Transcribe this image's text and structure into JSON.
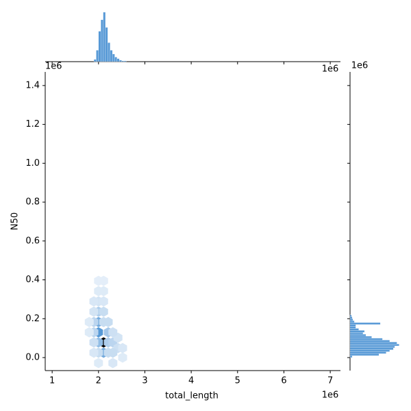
{
  "chart_data": {
    "type": "hexbin",
    "x_label": "total_length",
    "y_label": "N50",
    "x_offset_label": "1e6",
    "y_offset_label": "1e6",
    "xlim": [
      0.85,
      7.22
    ],
    "xticks": [
      1,
      2,
      3,
      4,
      5,
      6,
      7
    ],
    "ylim": [
      -0.067,
      1.47
    ],
    "yticks": [
      {
        "value": 0,
        "label": "0.0"
      },
      0.2,
      0.4,
      0.6,
      0.8,
      {
        "value": 1,
        "label": "1.0"
      },
      1.2,
      1.4
    ],
    "color": "#3a87cf",
    "hexbins": {
      "x": [
        2.11,
        2.0,
        2.11,
        2.0,
        2.0,
        2.21,
        1.9,
        2.0,
        1.9,
        2.21,
        2.31,
        2.42,
        2.31,
        2.0,
        2.21,
        2.42,
        2.52,
        2.11,
        1.9,
        2.11,
        1.9,
        2.0,
        1.9,
        2.11,
        2.0,
        2.11,
        2.0,
        2.11,
        2.0,
        2.31,
        2.52,
        1.8,
        1.8,
        2.21,
        2.31,
        1.9
      ],
      "y": [
        0.078,
        0.13,
        0.025,
        0.183,
        0.078,
        0.13,
        0.183,
        0.236,
        0.13,
        0.078,
        0.078,
        0.049,
        0.025,
        0.025,
        0.025,
        0.102,
        0.049,
        0.183,
        0.078,
        0.236,
        0.236,
        0.289,
        0.289,
        0.289,
        0.342,
        0.342,
        0.395,
        0.395,
        -0.028,
        -0.028,
        0.0,
        0.183,
        0.13,
        0.183,
        0.13,
        0.025
      ],
      "counts": [
        60,
        25,
        20,
        20,
        15,
        12,
        8,
        10,
        8,
        10,
        8,
        5,
        6,
        6,
        6,
        4,
        3,
        6,
        5,
        6,
        4,
        4,
        3,
        3,
        2,
        2,
        1,
        1,
        2,
        3,
        2,
        2,
        2,
        6,
        5,
        3
      ]
    },
    "x_histogram": {
      "bins": [
        1.9,
        1.95,
        2.0,
        2.05,
        2.1,
        2.15,
        2.2,
        2.25,
        2.3,
        2.35,
        2.4,
        2.45,
        2.5,
        2.55,
        2.6
      ],
      "counts": [
        3,
        15,
        40,
        55,
        65,
        45,
        25,
        15,
        10,
        6,
        4,
        2,
        1,
        1
      ],
      "ylim": [
        0,
        72
      ]
    },
    "y_histogram": {
      "bins": [
        0.0,
        0.01,
        0.02,
        0.03,
        0.04,
        0.05,
        0.06,
        0.07,
        0.08,
        0.09,
        0.1,
        0.11,
        0.12,
        0.13,
        0.14,
        0.15,
        0.16,
        0.17,
        0.18,
        0.19,
        0.2,
        0.21,
        0.22
      ],
      "counts": [
        3,
        40,
        50,
        55,
        60,
        62,
        68,
        65,
        55,
        45,
        30,
        22,
        18,
        20,
        12,
        8,
        8,
        42,
        6,
        4,
        3,
        2
      ],
      "xlim": [
        0,
        75
      ]
    }
  }
}
